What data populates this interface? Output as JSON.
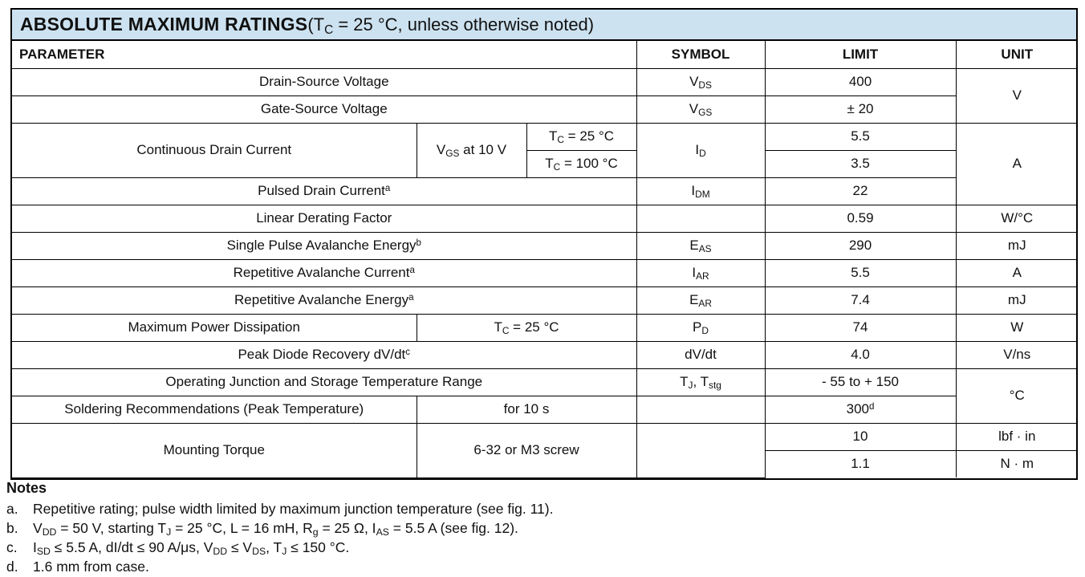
{
  "colors": {
    "title_bg": "#cde2f0",
    "border": "#000000",
    "text": "#111111"
  },
  "title": {
    "main": "ABSOLUTE MAXIMUM RATINGS",
    "condition": [
      {
        "t": " (T"
      },
      {
        "sub": "C"
      },
      {
        "t": " = 25 °C, unless otherwise noted)"
      }
    ]
  },
  "table": {
    "headers": {
      "parameter": "PARAMETER",
      "symbol": "SYMBOL",
      "limit": "LIMIT",
      "unit": "UNIT"
    },
    "rows": {
      "drain_source": {
        "param": "Drain-Source Voltage",
        "symbol": [
          {
            "t": "V"
          },
          {
            "sub": "DS"
          }
        ],
        "limit": "400"
      },
      "gate_source": {
        "param": "Gate-Source Voltage",
        "symbol": [
          {
            "t": "V"
          },
          {
            "sub": "GS"
          }
        ],
        "limit": "± 20"
      },
      "unit_v": "V",
      "cont_drain": {
        "param": "Continuous Drain Current",
        "cond": [
          {
            "t": "V"
          },
          {
            "sub": "GS"
          },
          {
            "t": " at 10 V"
          }
        ],
        "case_25": [
          {
            "t": "T"
          },
          {
            "sub": "C"
          },
          {
            "t": " = 25 °C"
          }
        ],
        "case_100": [
          {
            "t": "T"
          },
          {
            "sub": "C"
          },
          {
            "t": " = 100 °C"
          }
        ],
        "symbol": [
          {
            "t": "I"
          },
          {
            "sub": "D"
          }
        ],
        "limit_25": "5.5",
        "limit_100": "3.5"
      },
      "pulsed": {
        "param": [
          {
            "t": "Pulsed Drain Current"
          },
          {
            "sup": "a"
          }
        ],
        "symbol": [
          {
            "t": "I"
          },
          {
            "sub": "DM"
          }
        ],
        "limit": "22"
      },
      "unit_a": "A",
      "linear": {
        "param": "Linear Derating Factor",
        "limit": "0.59",
        "unit": "W/°C"
      },
      "single_pulse": {
        "param": [
          {
            "t": "Single Pulse Avalanche Energy"
          },
          {
            "sup": "b"
          }
        ],
        "symbol": [
          {
            "t": "E"
          },
          {
            "sub": "AS"
          }
        ],
        "limit": "290",
        "unit": "mJ"
      },
      "rep_current": {
        "param": [
          {
            "t": "Repetitive Avalanche Current"
          },
          {
            "sup": "a"
          }
        ],
        "symbol": [
          {
            "t": "I"
          },
          {
            "sub": "AR"
          }
        ],
        "limit": "5.5",
        "unit": "A"
      },
      "rep_energy": {
        "param": [
          {
            "t": "Repetitive Avalanche Energy"
          },
          {
            "sup": "a"
          }
        ],
        "symbol": [
          {
            "t": "E"
          },
          {
            "sub": "AR"
          }
        ],
        "limit": "7.4",
        "unit": "mJ"
      },
      "max_power": {
        "param": "Maximum Power Dissipation",
        "cond": [
          {
            "t": "T"
          },
          {
            "sub": "C"
          },
          {
            "t": " = 25 °C"
          }
        ],
        "symbol": [
          {
            "t": "P"
          },
          {
            "sub": "D"
          }
        ],
        "limit": "74",
        "unit": "W"
      },
      "peak_diode": {
        "param": [
          {
            "t": "Peak Diode Recovery dV/dt"
          },
          {
            "sup": "c"
          }
        ],
        "symbol": "dV/dt",
        "limit": "4.0",
        "unit": "V/ns"
      },
      "op_junction": {
        "param": "Operating Junction and Storage Temperature Range",
        "symbol": [
          {
            "t": "T"
          },
          {
            "sub": "J"
          },
          {
            "t": ", T"
          },
          {
            "sub": "stg"
          }
        ],
        "limit": "- 55 to + 150"
      },
      "soldering": {
        "param": "Soldering Recommendations (Peak Temperature)",
        "cond": "for 10 s",
        "limit": [
          {
            "t": "300"
          },
          {
            "sup": "d"
          }
        ]
      },
      "unit_c": "°C",
      "mounting": {
        "param": "Mounting Torque",
        "cond": "6-32 or M3 screw",
        "limit_lbf": "10",
        "unit_lbf": "lbf · in",
        "limit_nm": "1.1",
        "unit_nm": "N · m"
      }
    }
  },
  "notes": {
    "heading": "Notes",
    "items": [
      {
        "letter": "a.",
        "text": [
          {
            "t": "Repetitive rating; pulse width limited by maximum junction temperature (see fig. 11)."
          }
        ]
      },
      {
        "letter": "b.",
        "text": [
          {
            "t": "V"
          },
          {
            "sub": "DD"
          },
          {
            "t": " = 50 V, starting T"
          },
          {
            "sub": "J"
          },
          {
            "t": " = 25 °C, L = 16 mH, R"
          },
          {
            "sub": "g"
          },
          {
            "t": " = 25 Ω, I"
          },
          {
            "sub": "AS"
          },
          {
            "t": " = 5.5 A (see fig. 12)."
          }
        ]
      },
      {
        "letter": "c.",
        "text": [
          {
            "t": "I"
          },
          {
            "sub": "SD"
          },
          {
            "t": " ≤ 5.5 A, dI/dt ≤ 90 A/μs, V"
          },
          {
            "sub": "DD"
          },
          {
            "t": " ≤ V"
          },
          {
            "sub": "DS"
          },
          {
            "t": ", T"
          },
          {
            "sub": "J"
          },
          {
            "t": " ≤ 150 °C."
          }
        ]
      },
      {
        "letter": "d.",
        "text": [
          {
            "t": "1.6 mm from case."
          }
        ]
      }
    ]
  }
}
